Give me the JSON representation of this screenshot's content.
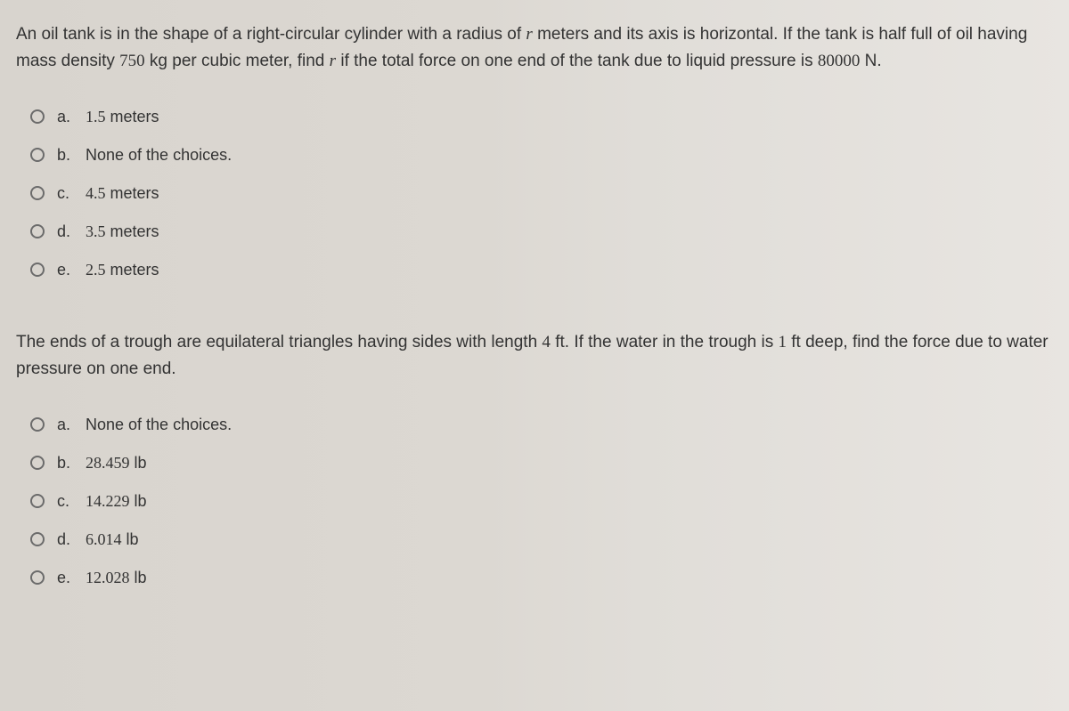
{
  "questions": [
    {
      "text_html": "An oil tank is in the shape of a right-circular cylinder with a radius of <span class='math'>r</span> meters and its axis is horizontal. If the tank is half full of oil having mass density <span class='num'>750</span> kg per cubic meter, find <span class='math'>r</span> if the total force on one end of the tank due to liquid pressure is <span class='num'>80000</span> N.",
      "options": [
        {
          "letter": "a.",
          "text_html": "<span class='num'>1.5</span> meters"
        },
        {
          "letter": "b.",
          "text_html": "None of the choices."
        },
        {
          "letter": "c.",
          "text_html": "<span class='num'>4.5</span> meters"
        },
        {
          "letter": "d.",
          "text_html": "<span class='num'>3.5</span> meters"
        },
        {
          "letter": "e.",
          "text_html": "<span class='num'>2.5</span> meters"
        }
      ]
    },
    {
      "text_html": "The ends of a trough are equilateral triangles having sides with length <span class='num'>4</span> ft. If the water in the trough is <span class='num'>1</span> ft deep, find the force due to water pressure on one end.",
      "options": [
        {
          "letter": "a.",
          "text_html": "None of the choices."
        },
        {
          "letter": "b.",
          "text_html": "<span class='num'>28.459</span> lb"
        },
        {
          "letter": "c.",
          "text_html": "<span class='num'>14.229</span> lb"
        },
        {
          "letter": "d.",
          "text_html": "<span class='num'>6.014</span> lb"
        },
        {
          "letter": "e.",
          "text_html": "<span class='num'>12.028</span> lb"
        }
      ]
    }
  ]
}
